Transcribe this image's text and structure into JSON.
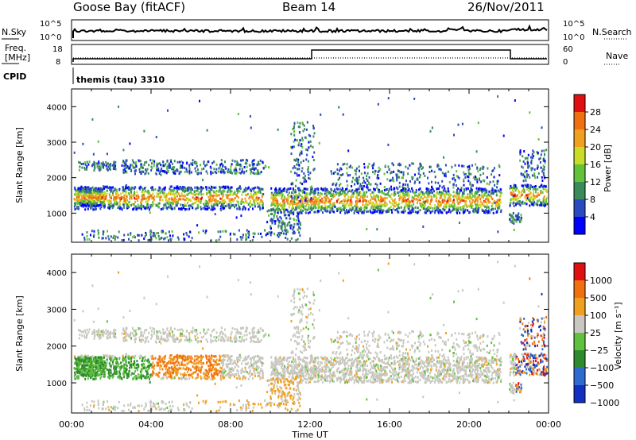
{
  "header": {
    "station": "Goose Bay (fitACF)",
    "beam": "Beam 14",
    "date": "26/Nov/2011"
  },
  "top_panels": {
    "nsky_label": "N.Sky",
    "nsearch_label": "N.Search",
    "nsky_ticks": [
      "10^5",
      "10^0"
    ],
    "nsearch_ticks": [
      "10^5",
      "10^0"
    ],
    "freq_label_line1": "Freq.",
    "freq_label_line2": "[MHz]",
    "freq_ticks": [
      "18",
      "8"
    ],
    "nave_label": "Nave",
    "nave_ticks": [
      "60",
      "0"
    ],
    "cpid_label": "CPID",
    "cpid_text": "themis (tau) 3310"
  },
  "colors": {
    "power_scale": [
      "#0000ff",
      "#2a4bbf",
      "#3a8a5a",
      "#63c13a",
      "#c8dc28",
      "#f0a020",
      "#f07010",
      "#e01010"
    ],
    "velocity_scale": [
      "#1030c0",
      "#2e6ad0",
      "#2e8a2e",
      "#60c040",
      "#c8c8c0",
      "#f0a020",
      "#f07010",
      "#e01010"
    ]
  },
  "chart_data": [
    {
      "type": "heatmap",
      "title": "Power",
      "ylabel": "Slant Range [km]",
      "xlabel": "",
      "yticks": [
        "1000",
        "2000",
        "3000",
        "4000"
      ],
      "ylim": [
        180,
        4500
      ],
      "colorbar_label": "Power [dB]",
      "colorbar_ticks": [
        "4",
        "8",
        "12",
        "16",
        "20",
        "24",
        "28"
      ],
      "colorbar_range": [
        0,
        32
      ]
    },
    {
      "type": "heatmap",
      "title": "Velocity",
      "ylabel": "Slant Range [km]",
      "xlabel": "Time UT",
      "xticks": [
        "00:00",
        "04:00",
        "08:00",
        "12:00",
        "16:00",
        "20:00",
        "00:00"
      ],
      "xlim_hours": [
        0,
        24
      ],
      "yticks": [
        "1000",
        "2000",
        "3000",
        "4000"
      ],
      "ylim": [
        180,
        4500
      ],
      "colorbar_label": "Velocity [m s⁻¹]",
      "colorbar_ticks": [
        "1000",
        "500",
        "100",
        "25",
        "−25",
        "−100",
        "−500",
        "−1000"
      ]
    }
  ]
}
